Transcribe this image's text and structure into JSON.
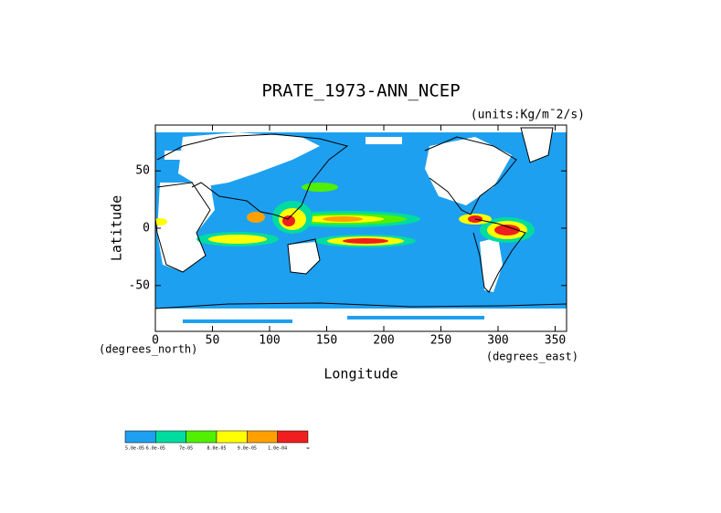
{
  "chart_data": {
    "type": "map",
    "title": "PRATE_1973-ANN_NCEP",
    "subtitle": "(units:Kg/m¯2/s)",
    "ylabel": "Latitude",
    "xlabel": "Longitude",
    "ylabel_units": "(degrees_north)",
    "xlabel_units": "(degrees_east)",
    "xlim": [
      0,
      360
    ],
    "ylim": [
      -90,
      90
    ],
    "xticks": [
      0,
      50,
      100,
      150,
      200,
      250,
      300,
      350
    ],
    "yticks": [
      -50,
      0,
      50
    ],
    "colorbar": {
      "colors": [
        "#1ea0f0",
        "#00dca0",
        "#50f000",
        "#ffff00",
        "#ffa000",
        "#f01e1e"
      ],
      "labels": [
        "5.0e-05",
        "6.0e-05",
        "7e-05",
        "8.0e-05",
        "9.0e-05",
        "1.0e-04",
        "∞"
      ]
    }
  }
}
